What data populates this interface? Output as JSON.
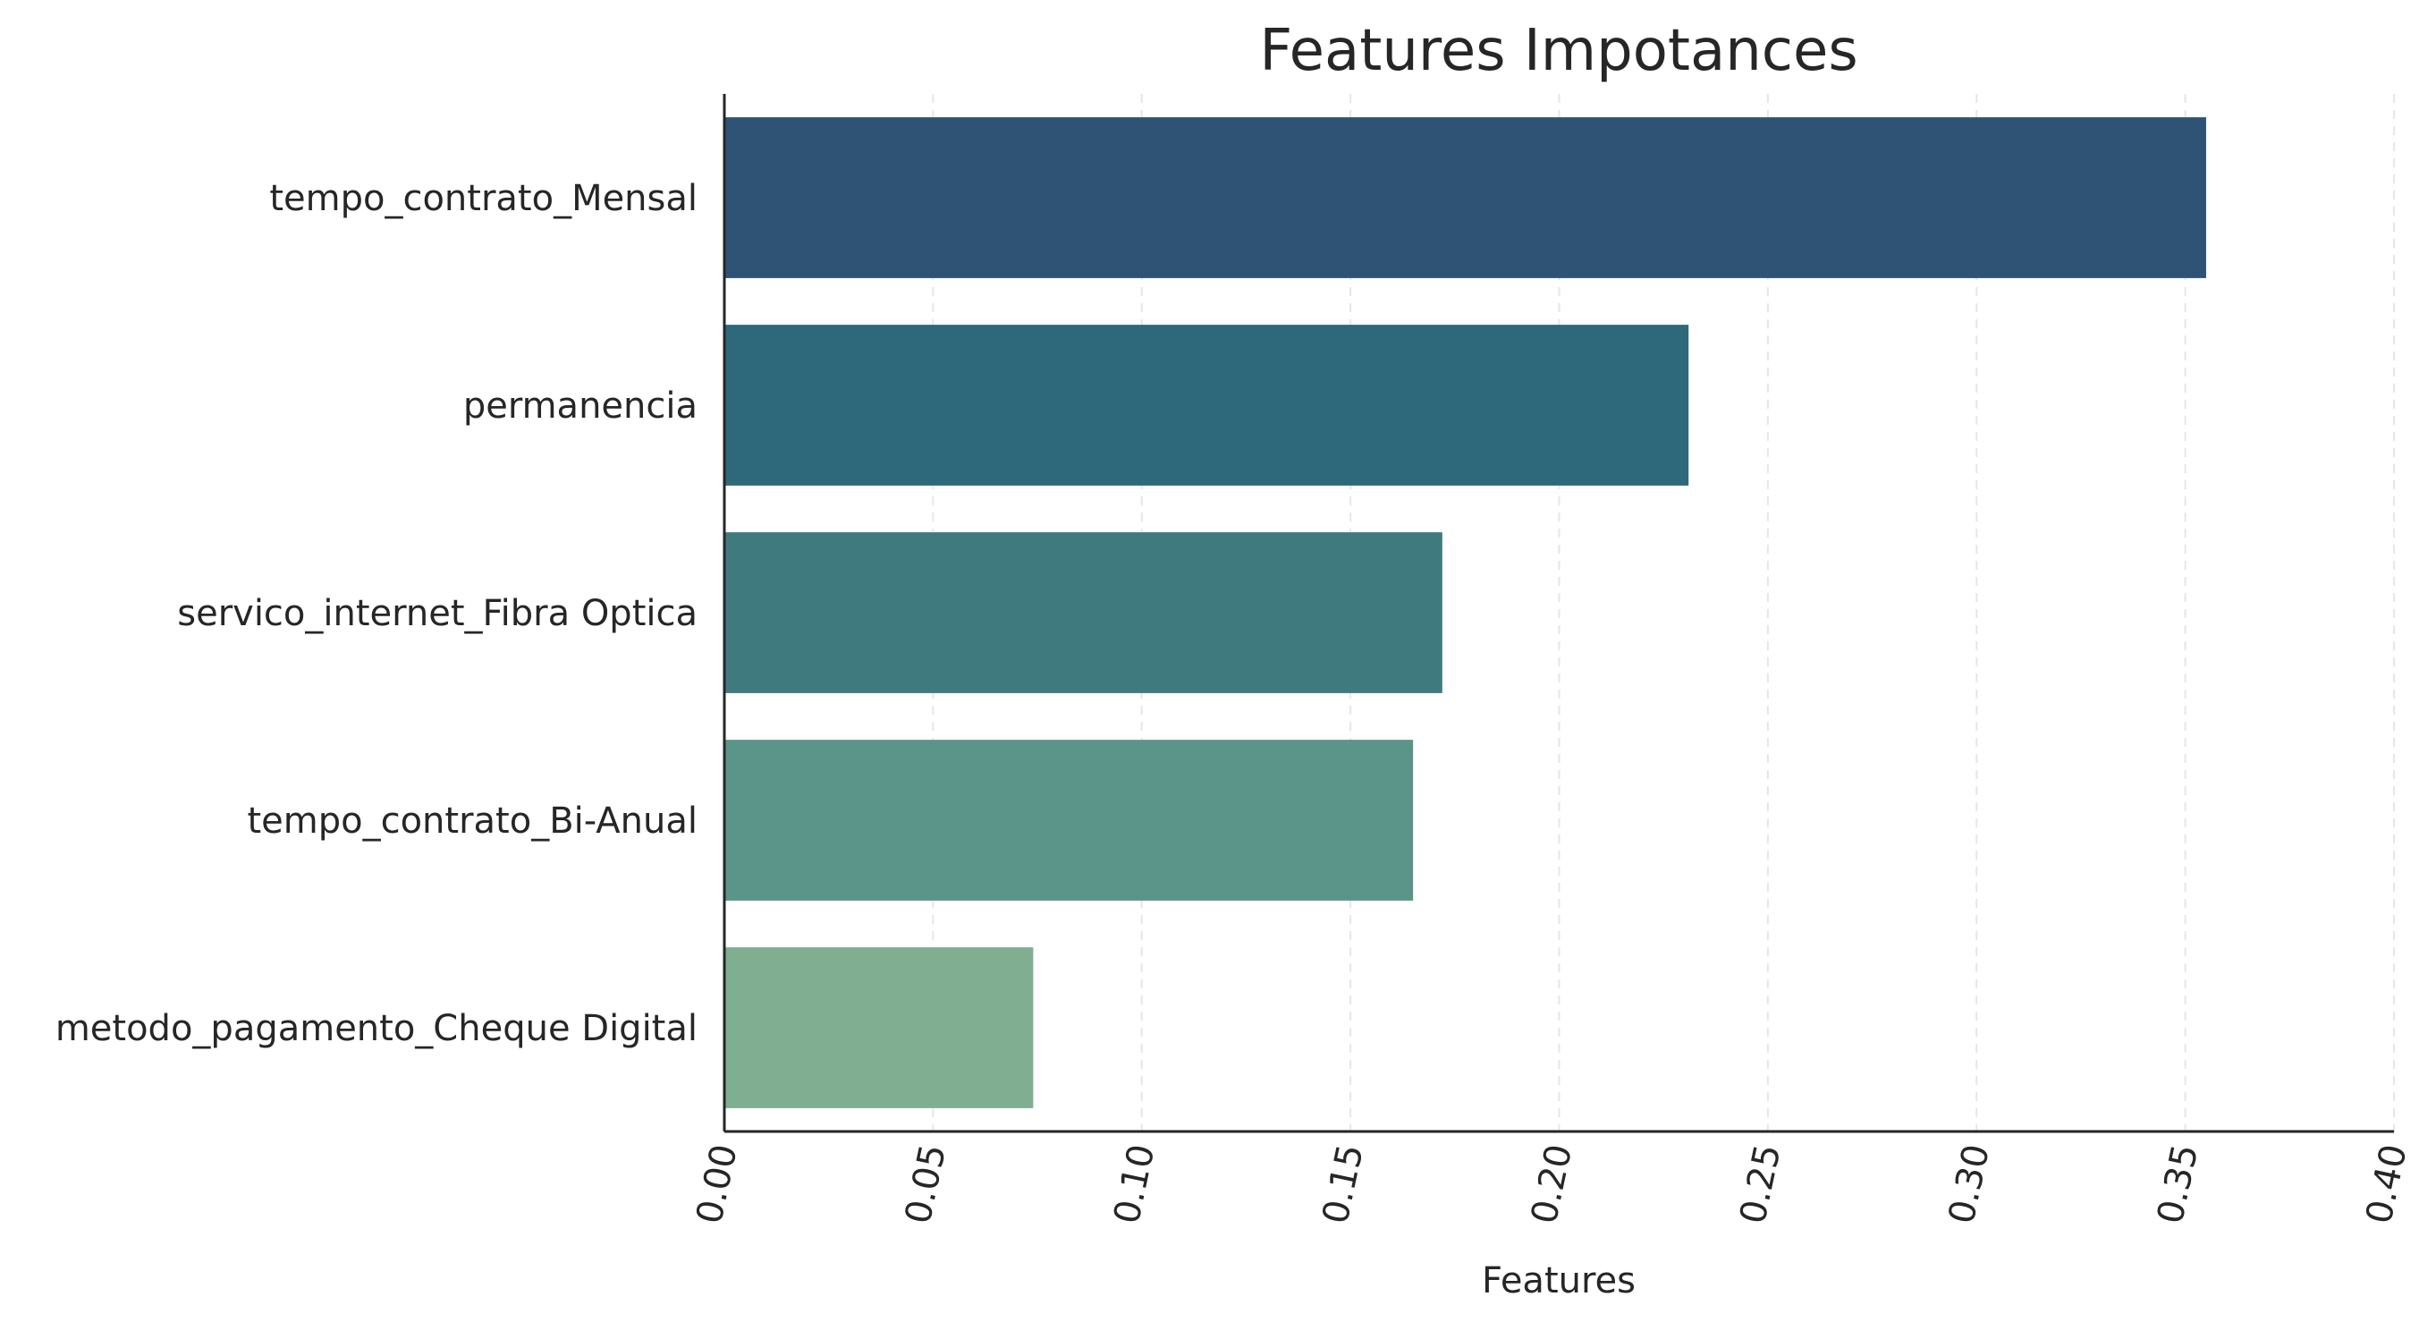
{
  "chart_data": {
    "type": "bar",
    "orientation": "horizontal",
    "title": "Features Impotances",
    "xlabel": "Features",
    "ylabel": "",
    "xlim": [
      0,
      0.4
    ],
    "xticks": [
      "0.00",
      "0.05",
      "0.10",
      "0.15",
      "0.20",
      "0.25",
      "0.30",
      "0.35",
      "0.40"
    ],
    "xtick_values": [
      0,
      0.05,
      0.1,
      0.15,
      0.2,
      0.25,
      0.3,
      0.35,
      0.4
    ],
    "grid": "vertical dashed",
    "categories": [
      "tempo_contrato_Mensal",
      "permanencia",
      "servico_internet_Fibra Optica",
      "tempo_contrato_Bi-Anual",
      "metodo_pagamento_Cheque Digital"
    ],
    "values": [
      0.355,
      0.231,
      0.172,
      0.165,
      0.074
    ],
    "colors": [
      "#2f5374",
      "#2d697b",
      "#3f7a7f",
      "#5b9489",
      "#7faf90"
    ]
  }
}
